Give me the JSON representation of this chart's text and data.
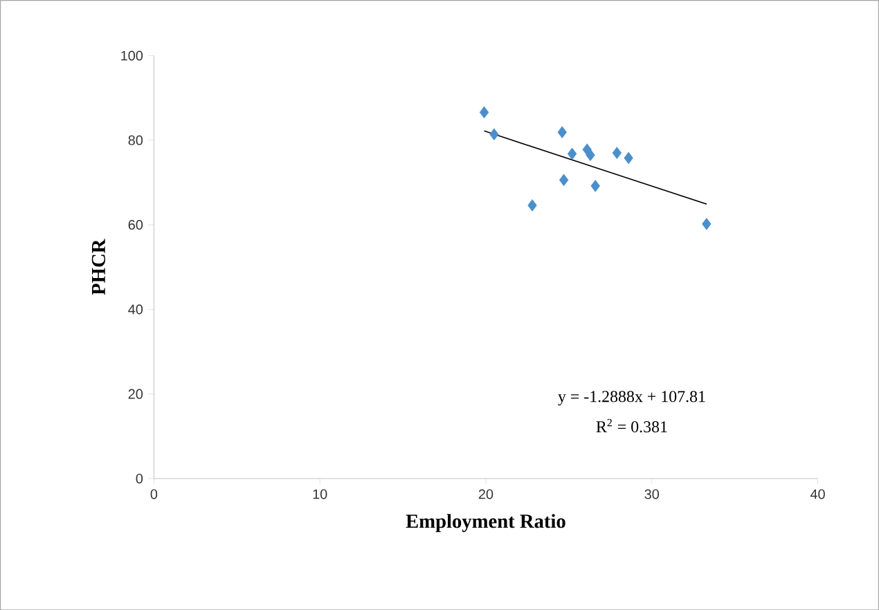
{
  "chart_data": {
    "type": "scatter",
    "xlabel": "Employment Ratio",
    "ylabel": "PHCR",
    "series": [
      {
        "marker": "diamond",
        "color": "#4a8fcc",
        "x": [
          19.9,
          20.5,
          24.6,
          22.8,
          24.7,
          25.2,
          26.1,
          26.3,
          26.6,
          27.9,
          28.6,
          33.3
        ],
        "values": [
          86.6,
          81.4,
          81.9,
          64.6,
          70.6,
          76.8,
          77.8,
          76.5,
          69.2,
          77.0,
          75.8,
          60.2
        ]
      },
      {
        "type": "line",
        "color": "#000000",
        "x": [
          19.9,
          33.3
        ],
        "values": [
          82.2,
          64.9
        ]
      }
    ],
    "annotations": [
      "y = -1.2888x + 107.81",
      "R$^{2}$ = 0.381"
    ],
    "xlim": [
      0,
      40
    ],
    "ylim": [
      0,
      100
    ],
    "xticks": [
      0,
      10,
      20,
      30,
      40
    ],
    "yticks": [
      0,
      20,
      40,
      60,
      80,
      100
    ],
    "grid": false
  }
}
